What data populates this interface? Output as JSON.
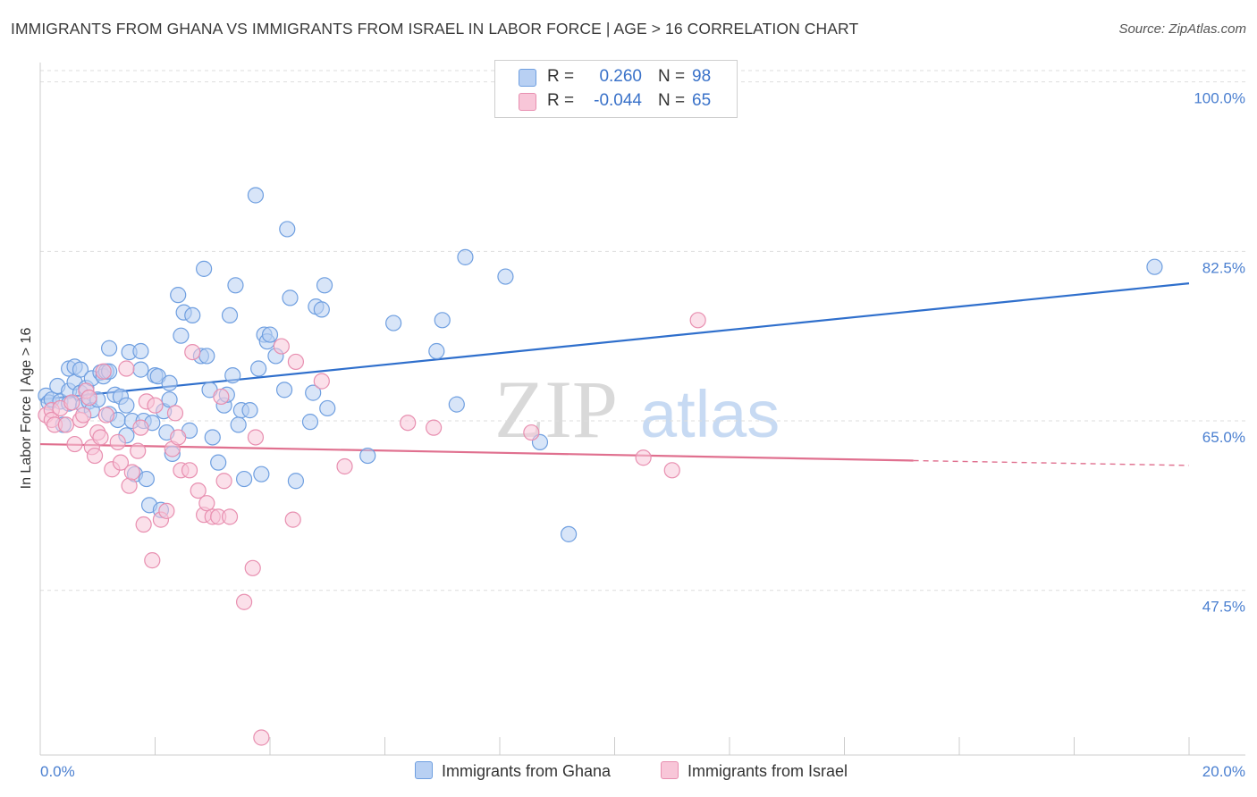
{
  "title": "IMMIGRANTS FROM GHANA VS IMMIGRANTS FROM ISRAEL IN LABOR FORCE | AGE > 16 CORRELATION CHART",
  "source": "Source: ZipAtlas.com",
  "watermark": {
    "zip": "ZIP",
    "atlas": "atlas"
  },
  "legend": {
    "rows": [
      {
        "r_label": "R =",
        "r_value": "0.260",
        "n_label": "N =",
        "n_value": "98",
        "color": "#6f9fe0",
        "fill": "#b8d0f3"
      },
      {
        "r_label": "R =",
        "r_value": "-0.044",
        "n_label": "N =",
        "n_value": "65",
        "color": "#e88fb0",
        "fill": "#f8c6d8"
      }
    ]
  },
  "bottom_legend": [
    {
      "label": "Immigrants from Ghana",
      "fill": "#b8d0f3",
      "color": "#6f9fe0"
    },
    {
      "label": "Immigrants from Israel",
      "fill": "#f8c6d8",
      "color": "#e88fb0"
    }
  ],
  "chart_data": {
    "type": "scatter",
    "title": "IMMIGRANTS FROM GHANA VS IMMIGRANTS FROM ISRAEL IN LABOR FORCE | AGE > 16 CORRELATION CHART",
    "xlabel": "",
    "ylabel": "In Labor Force | Age > 16",
    "xlim": [
      0,
      20
    ],
    "ylim": [
      30.5,
      102
    ],
    "x_tick_labels": [
      "0.0%",
      "20.0%"
    ],
    "y_ticks": [
      47.5,
      65.0,
      82.5,
      100.0
    ],
    "y_tick_labels": [
      "47.5%",
      "65.0%",
      "82.5%",
      "100.0%"
    ],
    "grid": true,
    "legend_position": "top-center",
    "series": [
      {
        "name": "Immigrants from Ghana",
        "color": "#6f9fe0",
        "fill": "#b8d0f3",
        "trend": {
          "x": [
            0,
            20
          ],
          "y": [
            67.2,
            79.2
          ],
          "style": "solid",
          "color": "#2f6fcc"
        },
        "points": [
          [
            0.1,
            67.6
          ],
          [
            0.15,
            66.9
          ],
          [
            0.2,
            67.2
          ],
          [
            0.3,
            68.6
          ],
          [
            0.35,
            67.0
          ],
          [
            0.4,
            64.6
          ],
          [
            0.5,
            68.1
          ],
          [
            0.5,
            66.8
          ],
          [
            0.5,
            70.4
          ],
          [
            0.6,
            69.0
          ],
          [
            0.6,
            70.6
          ],
          [
            0.7,
            70.3
          ],
          [
            0.7,
            67.9
          ],
          [
            0.75,
            66.6
          ],
          [
            0.8,
            68.4
          ],
          [
            0.85,
            67.0
          ],
          [
            0.9,
            69.4
          ],
          [
            0.9,
            66.1
          ],
          [
            1.0,
            67.2
          ],
          [
            1.05,
            70.0
          ],
          [
            1.1,
            69.6
          ],
          [
            1.15,
            70.1
          ],
          [
            1.2,
            70.1
          ],
          [
            1.2,
            65.7
          ],
          [
            1.2,
            72.5
          ],
          [
            1.3,
            67.7
          ],
          [
            1.35,
            65.1
          ],
          [
            1.4,
            67.5
          ],
          [
            1.5,
            66.6
          ],
          [
            1.5,
            63.5
          ],
          [
            1.55,
            72.1
          ],
          [
            1.6,
            65.0
          ],
          [
            1.65,
            59.5
          ],
          [
            1.75,
            70.3
          ],
          [
            1.75,
            72.2
          ],
          [
            1.8,
            65.0
          ],
          [
            1.85,
            59.0
          ],
          [
            1.9,
            56.3
          ],
          [
            1.95,
            64.8
          ],
          [
            2.0,
            69.7
          ],
          [
            2.05,
            69.6
          ],
          [
            2.1,
            55.8
          ],
          [
            2.15,
            66.0
          ],
          [
            2.2,
            63.8
          ],
          [
            2.25,
            67.2
          ],
          [
            2.25,
            68.9
          ],
          [
            2.3,
            61.6
          ],
          [
            2.4,
            78.0
          ],
          [
            2.45,
            73.8
          ],
          [
            2.5,
            76.2
          ],
          [
            2.6,
            64.0
          ],
          [
            2.65,
            75.9
          ],
          [
            2.8,
            71.7
          ],
          [
            2.85,
            80.7
          ],
          [
            2.9,
            71.7
          ],
          [
            2.95,
            68.2
          ],
          [
            3.0,
            63.3
          ],
          [
            3.1,
            60.7
          ],
          [
            3.2,
            66.6
          ],
          [
            3.25,
            67.7
          ],
          [
            3.3,
            75.9
          ],
          [
            3.35,
            69.7
          ],
          [
            3.4,
            79.0
          ],
          [
            3.45,
            64.6
          ],
          [
            3.5,
            66.1
          ],
          [
            3.55,
            59.0
          ],
          [
            3.65,
            66.1
          ],
          [
            3.75,
            88.3
          ],
          [
            3.8,
            70.4
          ],
          [
            3.85,
            59.5
          ],
          [
            3.9,
            73.9
          ],
          [
            3.95,
            73.2
          ],
          [
            4.0,
            73.9
          ],
          [
            4.1,
            71.7
          ],
          [
            4.25,
            68.2
          ],
          [
            4.3,
            84.8
          ],
          [
            4.35,
            77.7
          ],
          [
            4.45,
            58.8
          ],
          [
            4.7,
            64.9
          ],
          [
            4.75,
            67.9
          ],
          [
            4.8,
            76.8
          ],
          [
            4.9,
            76.5
          ],
          [
            4.95,
            79.0
          ],
          [
            5.0,
            66.3
          ],
          [
            5.7,
            61.4
          ],
          [
            6.15,
            75.1
          ],
          [
            6.9,
            72.2
          ],
          [
            7.0,
            75.4
          ],
          [
            7.25,
            66.7
          ],
          [
            7.4,
            81.9
          ],
          [
            8.1,
            79.9
          ],
          [
            8.7,
            62.8
          ],
          [
            9.2,
            53.3
          ],
          [
            19.4,
            80.9
          ]
        ]
      },
      {
        "name": "Immigrants from Israel",
        "color": "#e88fb0",
        "fill": "#f8c6d8",
        "trend": {
          "x": [
            0,
            15.2
          ],
          "y": [
            62.6,
            60.9
          ],
          "style": "solid",
          "dashed_to": [
            20,
            60.4
          ],
          "color": "#e0708f"
        },
        "points": [
          [
            0.1,
            65.6
          ],
          [
            0.2,
            66.1
          ],
          [
            0.2,
            65.1
          ],
          [
            0.25,
            64.6
          ],
          [
            0.35,
            66.3
          ],
          [
            0.45,
            64.6
          ],
          [
            0.55,
            66.9
          ],
          [
            0.6,
            62.6
          ],
          [
            0.7,
            65.1
          ],
          [
            0.75,
            65.6
          ],
          [
            0.8,
            68.1
          ],
          [
            0.85,
            67.4
          ],
          [
            0.9,
            62.3
          ],
          [
            0.95,
            61.4
          ],
          [
            1.0,
            63.8
          ],
          [
            1.05,
            63.3
          ],
          [
            1.1,
            70.1
          ],
          [
            1.15,
            65.6
          ],
          [
            1.25,
            60.0
          ],
          [
            1.35,
            62.8
          ],
          [
            1.4,
            60.7
          ],
          [
            1.5,
            70.4
          ],
          [
            1.55,
            58.3
          ],
          [
            1.6,
            59.7
          ],
          [
            1.7,
            61.9
          ],
          [
            1.75,
            64.3
          ],
          [
            1.8,
            54.3
          ],
          [
            1.85,
            67.0
          ],
          [
            1.95,
            50.6
          ],
          [
            2.0,
            66.6
          ],
          [
            2.1,
            54.8
          ],
          [
            2.2,
            55.7
          ],
          [
            2.3,
            62.1
          ],
          [
            2.35,
            65.8
          ],
          [
            2.4,
            63.3
          ],
          [
            2.45,
            59.9
          ],
          [
            2.6,
            59.9
          ],
          [
            2.65,
            72.1
          ],
          [
            2.75,
            57.8
          ],
          [
            2.85,
            55.3
          ],
          [
            2.9,
            56.5
          ],
          [
            3.0,
            55.1
          ],
          [
            3.1,
            55.1
          ],
          [
            3.15,
            67.5
          ],
          [
            3.2,
            58.8
          ],
          [
            3.3,
            55.1
          ],
          [
            3.55,
            46.3
          ],
          [
            3.7,
            49.8
          ],
          [
            3.75,
            63.3
          ],
          [
            3.85,
            32.3
          ],
          [
            4.2,
            72.7
          ],
          [
            4.4,
            54.8
          ],
          [
            4.45,
            71.1
          ],
          [
            4.9,
            69.1
          ],
          [
            5.3,
            60.3
          ],
          [
            6.4,
            64.8
          ],
          [
            6.85,
            64.3
          ],
          [
            8.55,
            63.8
          ],
          [
            10.5,
            61.2
          ],
          [
            11.0,
            59.9
          ],
          [
            11.45,
            75.4
          ]
        ]
      }
    ]
  }
}
